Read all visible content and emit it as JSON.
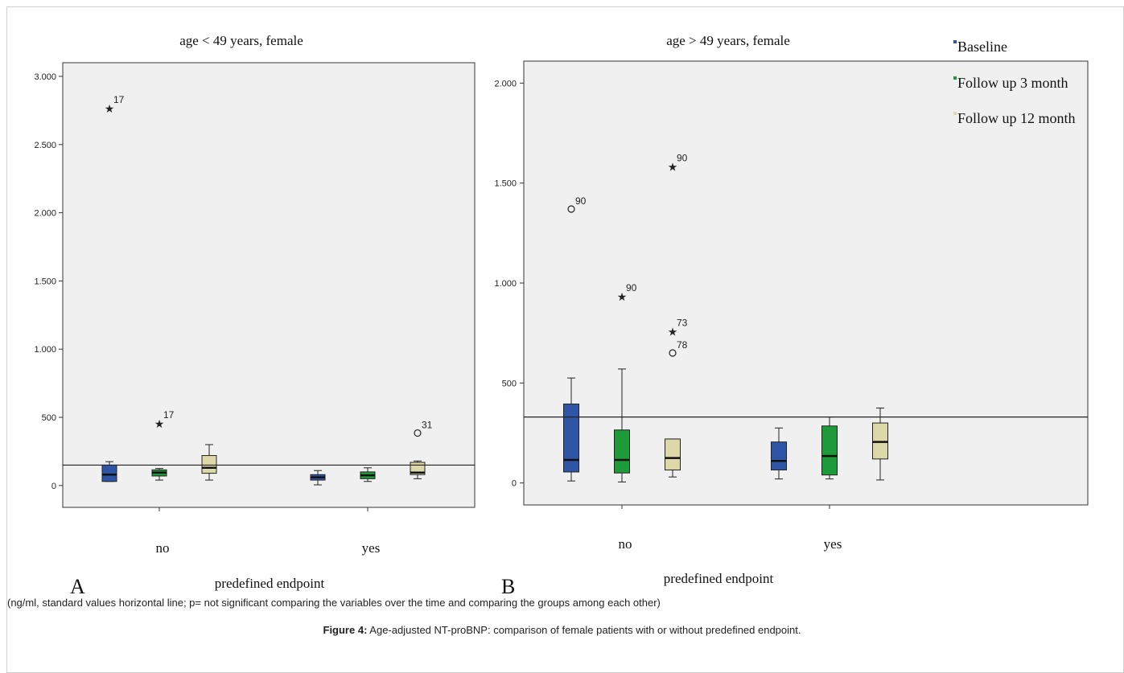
{
  "colors": {
    "baseline": "#2f56a6",
    "follow_up_3": "#1f9a3a",
    "follow_up_12": "#ddd8a9",
    "plot_bg": "#f0f0f0",
    "axis": "#333333"
  },
  "legend": [
    {
      "label": "Baseline",
      "color": "#2f56a6"
    },
    {
      "label": "Follow up 3 month",
      "color": "#1f9a3a"
    },
    {
      "label": "Follow up 12 month",
      "color": "#ddd8a9"
    }
  ],
  "chart_data": [
    {
      "type": "box",
      "panel_letter": "A",
      "title": "age < 49 years, female",
      "xlabel": "predefined endpoint",
      "categories": [
        "no",
        "yes"
      ],
      "ylim": [
        -160,
        3100
      ],
      "yticks": [
        0,
        500,
        1000,
        1500,
        2000,
        2500,
        3000
      ],
      "ytick_labels": [
        "0",
        "500",
        "1.000",
        "1.500",
        "2.000",
        "2.500",
        "3.000"
      ],
      "reference_line": 150,
      "series": [
        {
          "name": "Baseline",
          "boxes": [
            {
              "category": "no",
              "min": 30,
              "q1": 30,
              "median": 80,
              "q3": 150,
              "max": 175,
              "outliers": [
                {
                  "value": 2770,
                  "marker": "star",
                  "label": "17"
                }
              ]
            },
            {
              "category": "yes",
              "min": 5,
              "q1": 40,
              "median": 60,
              "q3": 80,
              "max": 110,
              "outliers": []
            }
          ]
        },
        {
          "name": "Follow up 3 month",
          "boxes": [
            {
              "category": "no",
              "min": 40,
              "q1": 70,
              "median": 95,
              "q3": 115,
              "max": 125,
              "outliers": [
                {
                  "value": 460,
                  "marker": "star",
                  "label": "17"
                }
              ]
            },
            {
              "category": "yes",
              "min": 30,
              "q1": 50,
              "median": 75,
              "q3": 100,
              "max": 130,
              "outliers": []
            }
          ]
        },
        {
          "name": "Follow up 12 month",
          "boxes": [
            {
              "category": "no",
              "min": 40,
              "q1": 90,
              "median": 130,
              "q3": 220,
              "max": 300,
              "outliers": []
            },
            {
              "category": "yes",
              "min": 50,
              "q1": 80,
              "median": 95,
              "q3": 170,
              "max": 180,
              "outliers": [
                {
                  "value": 385,
                  "marker": "circle",
                  "label": "31"
                }
              ]
            }
          ]
        }
      ]
    },
    {
      "type": "box",
      "panel_letter": "B",
      "title": "age > 49 years, female",
      "xlabel": "predefined endpoint",
      "categories": [
        "no",
        "yes"
      ],
      "ylim": [
        -110,
        2110
      ],
      "yticks": [
        0,
        500,
        1000,
        1500,
        2000
      ],
      "ytick_labels": [
        "0",
        "500",
        "1.000",
        "1.500",
        "2.000"
      ],
      "reference_line": 330,
      "series": [
        {
          "name": "Baseline",
          "boxes": [
            {
              "category": "no",
              "min": 10,
              "q1": 55,
              "median": 115,
              "q3": 395,
              "max": 525,
              "outliers": [
                {
                  "value": 1370,
                  "marker": "circle",
                  "label": "90"
                }
              ]
            },
            {
              "category": "yes",
              "min": 20,
              "q1": 65,
              "median": 110,
              "q3": 205,
              "max": 275,
              "outliers": []
            }
          ]
        },
        {
          "name": "Follow up 3 month",
          "boxes": [
            {
              "category": "no",
              "min": 5,
              "q1": 50,
              "median": 115,
              "q3": 265,
              "max": 570,
              "outliers": [
                {
                  "value": 935,
                  "marker": "star",
                  "label": "90"
                }
              ]
            },
            {
              "category": "yes",
              "min": 20,
              "q1": 40,
              "median": 135,
              "q3": 285,
              "max": 330,
              "outliers": []
            }
          ]
        },
        {
          "name": "Follow up 12 month",
          "boxes": [
            {
              "category": "no",
              "min": 30,
              "q1": 65,
              "median": 125,
              "q3": 220,
              "max": 220,
              "outliers": [
                {
                  "value": 1585,
                  "marker": "star",
                  "label": "90"
                },
                {
                  "value": 760,
                  "marker": "star",
                  "label": "73"
                },
                {
                  "value": 650,
                  "marker": "circle",
                  "label": "78"
                }
              ]
            },
            {
              "category": "yes",
              "min": 15,
              "q1": 120,
              "median": 205,
              "q3": 300,
              "max": 375,
              "outliers": []
            }
          ]
        }
      ]
    }
  ],
  "note": "(ng/ml, standard values horizontal line; p= not significant comparing the variables over the time and comparing the groups among each other)",
  "caption": {
    "label": "Figure 4:",
    "text": " Age-adjusted NT-proBNP: comparison of female patients with or without predefined endpoint."
  }
}
